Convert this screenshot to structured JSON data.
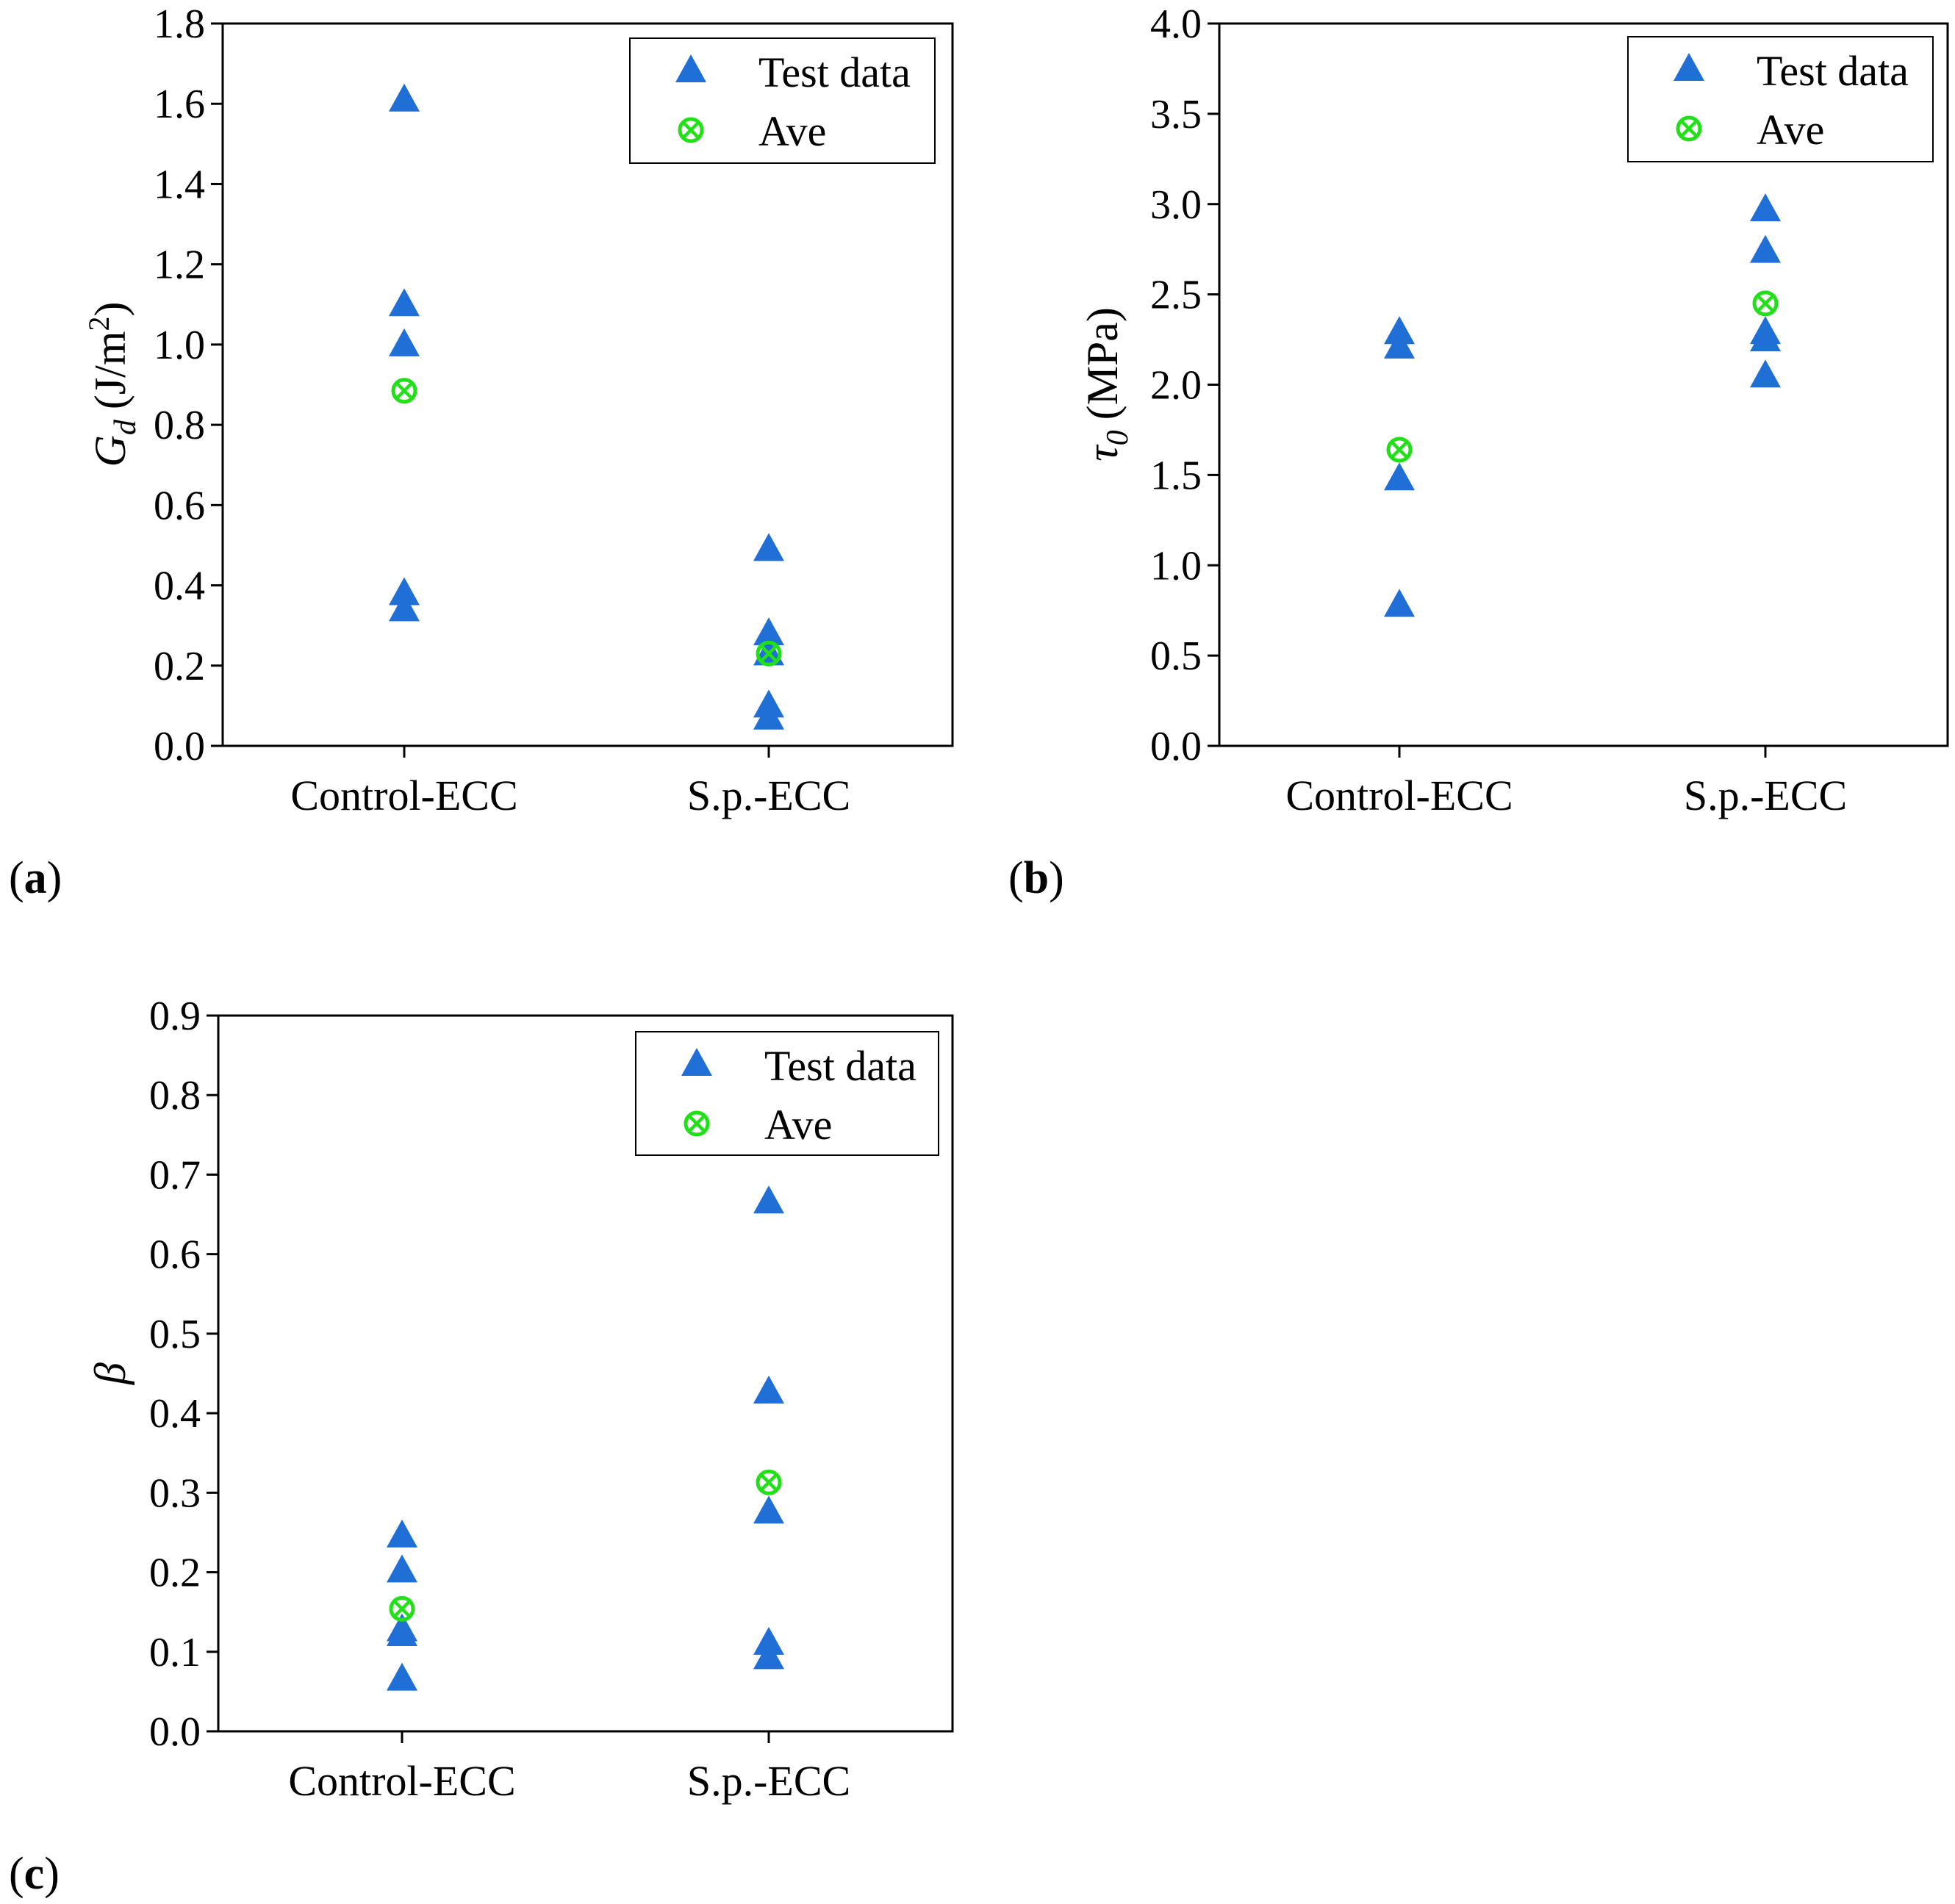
{
  "colors": {
    "test": "#1f6fd6",
    "ave": "#22e018",
    "axis": "#000000"
  },
  "legend": {
    "test_label": "Test data",
    "ave_label": "Ave"
  },
  "chart_data": [
    {
      "panel": "(a)",
      "type": "scatter",
      "categories": [
        "Control-ECC",
        "S.p.-ECC"
      ],
      "ylabel": {
        "symbol": "G",
        "sub": "d",
        "units": "(J/m",
        "sup": "2",
        "close": ")"
      },
      "ylim": [
        0,
        1.8
      ],
      "yticks": [
        "0.0",
        "0.2",
        "0.4",
        "0.6",
        "0.8",
        "1.0",
        "1.2",
        "1.4",
        "1.6",
        "1.8"
      ],
      "series": [
        {
          "name": "Test data",
          "values": [
            [
              1.61,
              1.1,
              1.0,
              0.38,
              0.34
            ],
            [
              0.49,
              0.28,
              0.23,
              0.1,
              0.07
            ]
          ]
        },
        {
          "name": "Ave",
          "values": [
            [
              0.885
            ],
            [
              0.23
            ]
          ]
        }
      ],
      "legend_position": "top-right"
    },
    {
      "panel": "(b)",
      "type": "scatter",
      "categories": [
        "Control-ECC",
        "S.p.-ECC"
      ],
      "ylabel": {
        "symbol": "τ",
        "sub": "0",
        "units": "(MPa)",
        "sup": "",
        "close": ""
      },
      "ylim": [
        0,
        4.0
      ],
      "yticks": [
        "0.0",
        "0.5",
        "1.0",
        "1.5",
        "2.0",
        "2.5",
        "3.0",
        "3.5",
        "4.0"
      ],
      "series": [
        {
          "name": "Test data",
          "values": [
            [
              2.29,
              2.21,
              1.48,
              0.78
            ],
            [
              2.97,
              2.74,
              2.29,
              2.25,
              2.05
            ]
          ]
        },
        {
          "name": "Ave",
          "values": [
            [
              1.64
            ],
            [
              2.45
            ]
          ]
        }
      ],
      "legend_position": "top-right"
    },
    {
      "panel": "(c)",
      "type": "scatter",
      "categories": [
        "Control-ECC",
        "S.p.-ECC"
      ],
      "ylabel": {
        "symbol": "β",
        "sub": "",
        "units": "",
        "sup": "",
        "close": ""
      },
      "ylim": [
        0,
        0.9
      ],
      "yticks": [
        "0.0",
        "0.1",
        "0.2",
        "0.3",
        "0.4",
        "0.5",
        "0.6",
        "0.7",
        "0.8",
        "0.9"
      ],
      "series": [
        {
          "name": "Test data",
          "values": [
            [
              0.246,
              0.202,
              0.128,
              0.122,
              0.066
            ],
            [
              0.666,
              0.427,
              0.276,
              0.111,
              0.093
            ]
          ]
        },
        {
          "name": "Ave",
          "values": [
            [
              0.154
            ],
            [
              0.313
            ]
          ]
        }
      ],
      "legend_position": "top-right"
    }
  ]
}
